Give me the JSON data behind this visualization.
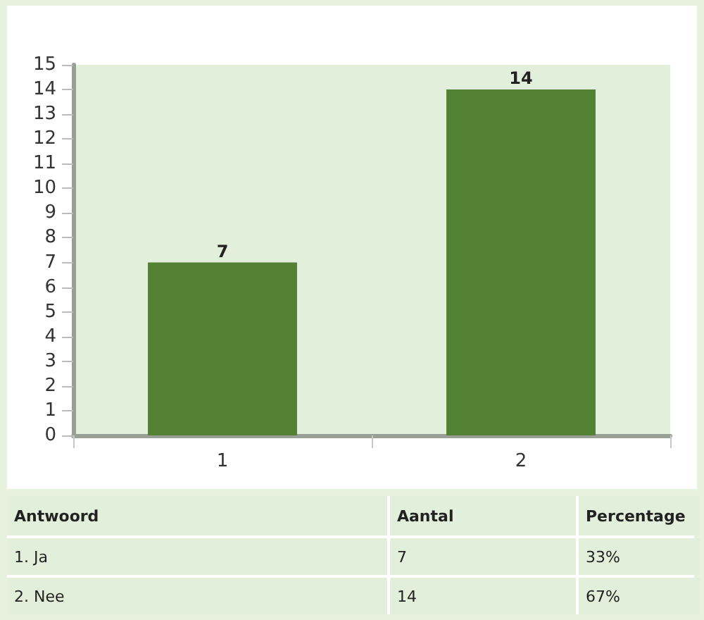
{
  "chart_data": {
    "type": "bar",
    "categories": [
      "1",
      "2"
    ],
    "values": [
      7,
      14
    ],
    "color": "#548235",
    "ylim": [
      0,
      15
    ],
    "yticks": [
      0,
      1,
      2,
      3,
      4,
      5,
      6,
      7,
      8,
      9,
      10,
      11,
      12,
      13,
      14,
      15
    ],
    "data_labels": true,
    "annotations": [
      "Antwoord",
      "Aantal",
      "Percentage",
      "1. Ja",
      "7",
      "33%",
      "2. Nee",
      "14",
      "67%"
    ]
  }
}
